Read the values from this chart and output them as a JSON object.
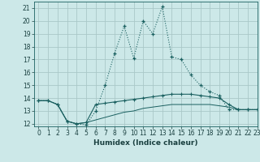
{
  "xlabel": "Humidex (Indice chaleur)",
  "bg_color": "#cce8e8",
  "grid_color": "#aac8c8",
  "line_color": "#1a6060",
  "xlim": [
    -0.5,
    23
  ],
  "ylim": [
    11.8,
    21.5
  ],
  "yticks": [
    12,
    13,
    14,
    15,
    16,
    17,
    18,
    19,
    20,
    21
  ],
  "xticks": [
    0,
    1,
    2,
    3,
    4,
    5,
    6,
    7,
    8,
    9,
    10,
    11,
    12,
    13,
    14,
    15,
    16,
    17,
    18,
    19,
    20,
    21,
    22,
    23
  ],
  "line1_x": [
    0,
    1,
    2,
    3,
    4,
    5,
    6,
    7,
    8,
    9,
    10,
    11,
    12,
    13,
    14,
    15,
    16,
    17,
    18,
    19,
    20,
    21,
    22,
    23
  ],
  "line1_y": [
    13.8,
    13.8,
    13.5,
    12.2,
    12.0,
    11.9,
    13.0,
    15.0,
    17.5,
    19.6,
    17.1,
    20.0,
    19.0,
    21.1,
    17.2,
    17.0,
    15.8,
    15.0,
    14.5,
    14.2,
    13.1,
    13.1,
    13.1,
    13.1
  ],
  "line2_x": [
    0,
    1,
    2,
    3,
    4,
    5,
    6,
    7,
    8,
    9,
    10,
    11,
    12,
    13,
    14,
    15,
    16,
    17,
    18,
    19,
    20,
    21,
    22,
    23
  ],
  "line2_y": [
    13.8,
    13.8,
    13.5,
    12.2,
    12.0,
    12.1,
    13.5,
    13.6,
    13.7,
    13.8,
    13.9,
    14.0,
    14.1,
    14.2,
    14.3,
    14.3,
    14.3,
    14.2,
    14.1,
    14.0,
    13.5,
    13.1,
    13.1,
    13.1
  ],
  "line3_x": [
    0,
    1,
    2,
    3,
    4,
    5,
    6,
    7,
    8,
    9,
    10,
    11,
    12,
    13,
    14,
    15,
    16,
    17,
    18,
    19,
    20,
    21,
    22,
    23
  ],
  "line3_y": [
    13.8,
    13.8,
    13.5,
    12.2,
    12.0,
    12.1,
    12.3,
    12.5,
    12.7,
    12.9,
    13.0,
    13.2,
    13.3,
    13.4,
    13.5,
    13.5,
    13.5,
    13.5,
    13.5,
    13.4,
    13.3,
    13.1,
    13.1,
    13.1
  ]
}
